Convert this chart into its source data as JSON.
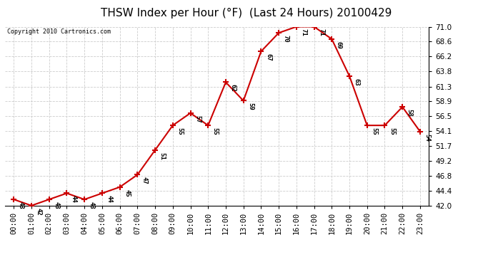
{
  "title": "THSW Index per Hour (°F)  (Last 24 Hours) 20100429",
  "copyright": "Copyright 2010 Cartronics.com",
  "hours": [
    "00:00",
    "01:00",
    "02:00",
    "03:00",
    "04:00",
    "05:00",
    "06:00",
    "07:00",
    "08:00",
    "09:00",
    "10:00",
    "11:00",
    "12:00",
    "13:00",
    "14:00",
    "15:00",
    "16:00",
    "17:00",
    "18:00",
    "19:00",
    "20:00",
    "21:00",
    "22:00",
    "23:00"
  ],
  "values": [
    43,
    42,
    43,
    44,
    43,
    44,
    45,
    47,
    51,
    55,
    57,
    55,
    62,
    59,
    67,
    70,
    71,
    71,
    69,
    63,
    55,
    55,
    58,
    54
  ],
  "ylim": [
    42.0,
    71.0
  ],
  "yticks": [
    42.0,
    44.4,
    46.8,
    49.2,
    51.7,
    54.1,
    56.5,
    58.9,
    61.3,
    63.8,
    66.2,
    68.6,
    71.0
  ],
  "line_color": "#cc0000",
  "marker": "+",
  "marker_size": 6,
  "marker_edge_width": 1.5,
  "line_width": 1.5,
  "grid_color": "#cccccc",
  "bg_color": "#ffffff",
  "title_fontsize": 11,
  "tick_fontsize": 7.5,
  "annot_fontsize": 6.5,
  "copyright_fontsize": 6
}
